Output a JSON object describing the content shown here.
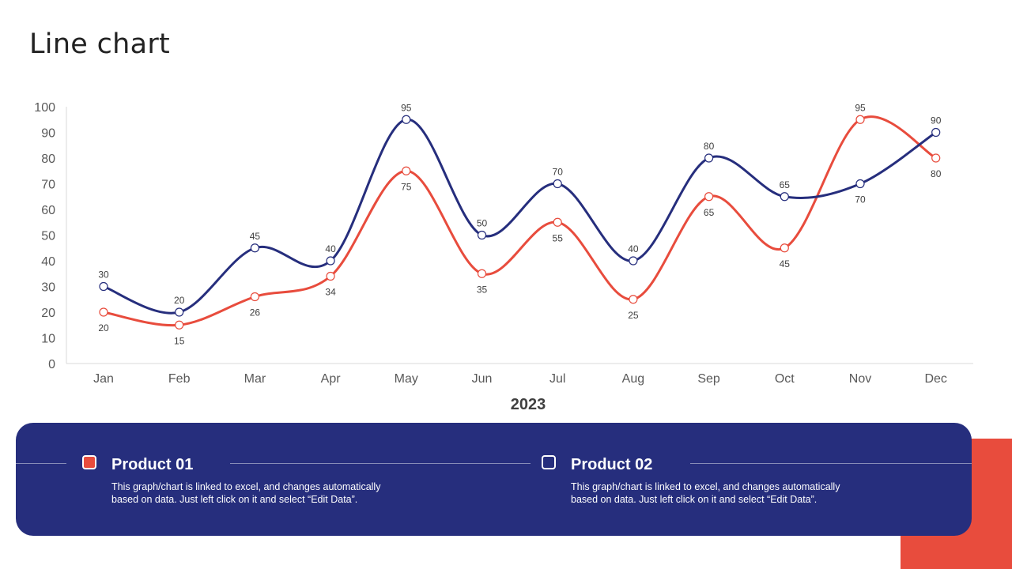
{
  "page": {
    "title": "Line chart"
  },
  "colors": {
    "navy": "#262E7D",
    "red": "#E84C3D",
    "axis": "#D9D9D9"
  },
  "chart_data": {
    "type": "line",
    "title": "",
    "xlabel": "2023",
    "ylabel": "",
    "ylim": [
      0,
      100
    ],
    "yticks": [
      0,
      10,
      20,
      30,
      40,
      50,
      60,
      70,
      80,
      90,
      100
    ],
    "categories": [
      "Jan",
      "Feb",
      "Mar",
      "Apr",
      "May",
      "Jun",
      "Jul",
      "Aug",
      "Sep",
      "Oct",
      "Nov",
      "Dec"
    ],
    "series": [
      {
        "name": "Product 01",
        "color": "#E84C3D",
        "values": [
          20,
          15,
          26,
          34,
          75,
          35,
          55,
          25,
          65,
          45,
          95,
          80
        ]
      },
      {
        "name": "Product 02",
        "color": "#262E7D",
        "values": [
          30,
          20,
          45,
          40,
          95,
          50,
          70,
          40,
          80,
          65,
          70,
          90
        ]
      }
    ],
    "legend": "bottom"
  },
  "legend": {
    "items": [
      {
        "title": "Product 01",
        "description_line1": "This graph/chart is linked to excel, and changes automatically",
        "description_line2": "based on data. Just left click on it and select “Edit Data”."
      },
      {
        "title": "Product 02",
        "description_line1": "This graph/chart is linked to excel, and changes automatically",
        "description_line2": "based on data. Just left click on it and select “Edit Data”."
      }
    ]
  }
}
